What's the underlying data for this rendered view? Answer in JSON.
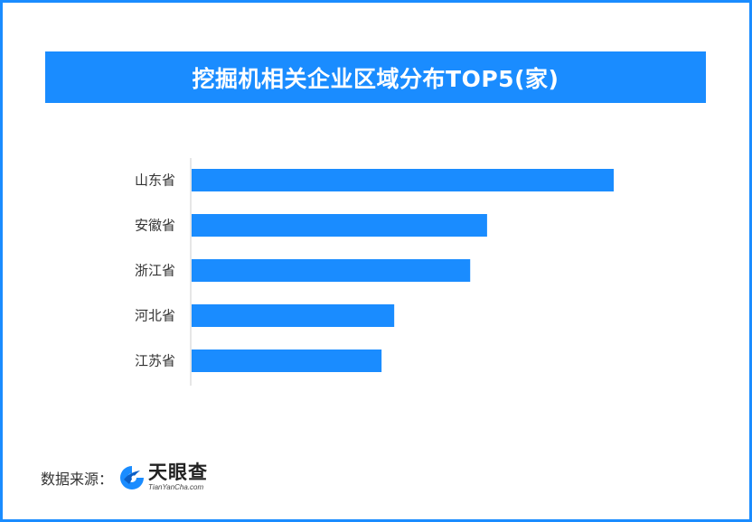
{
  "colors": {
    "accent": "#1a8cff",
    "bar": "#1a8cff",
    "axis": "#cccccc",
    "text": "#333333"
  },
  "header": {
    "title": "挖掘机相关企业区域分布TOP5(家)"
  },
  "chart_data": {
    "type": "bar",
    "orientation": "horizontal",
    "title": "挖掘机相关企业区域分布TOP5(家)",
    "categories": [
      "山东省",
      "安徽省",
      "浙江省",
      "河北省",
      "江苏省"
    ],
    "values": [
      100,
      70,
      66,
      48,
      45
    ],
    "value_labels_shown": false,
    "grid": false,
    "legend": "none"
  },
  "source": {
    "label": "数据来源：",
    "logo_icon": "tianyancha-logo-icon",
    "logo_name": "天眼查",
    "logo_url": "TianYanCha.com"
  }
}
